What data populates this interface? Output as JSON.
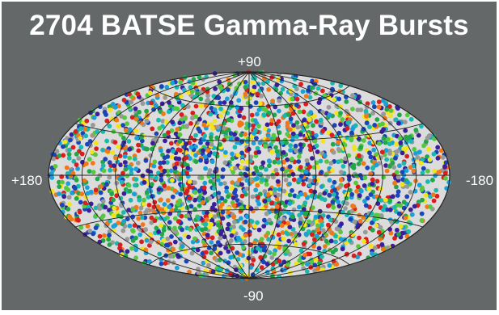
{
  "title": "2704 BATSE Gamma-Ray Bursts",
  "labels": {
    "north": "+90",
    "south": "-90",
    "west": "+180",
    "east": "-180"
  },
  "projection": "aitoff",
  "colors": {
    "background": "#646868",
    "sky": "#dcdcdc",
    "grid": "#222222",
    "title": "#ffffff",
    "burst_palette": [
      "#3b1e9a",
      "#1a44b8",
      "#1aa0d8",
      "#19b8b0",
      "#22a64a",
      "#55c840",
      "#f2e41a",
      "#f07818",
      "#d81e1e",
      "#999999"
    ]
  },
  "bursts": {
    "count": 2704,
    "distribution": "isotropic"
  }
}
